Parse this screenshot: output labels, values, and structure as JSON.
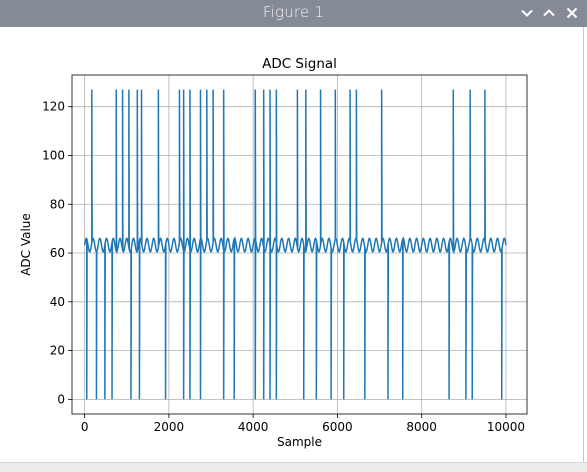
{
  "window": {
    "title": "Figure 1",
    "controls": [
      {
        "name": "minimize",
        "icon": "chevron-down-icon"
      },
      {
        "name": "maximize",
        "icon": "chevron-up-icon"
      },
      {
        "name": "close",
        "icon": "close-icon"
      }
    ],
    "titlebar_color": "#848b96"
  },
  "chart_data": {
    "type": "line",
    "title": "ADC Signal",
    "xlabel": "Sample",
    "ylabel": "ADC Value",
    "xlim": [
      -300,
      10500
    ],
    "ylim": [
      -6,
      133
    ],
    "xticks": [
      0,
      2000,
      4000,
      6000,
      8000,
      10000
    ],
    "yticks": [
      0,
      20,
      40,
      60,
      80,
      100,
      120
    ],
    "grid": true,
    "line_color": "#1f77b4",
    "series": [
      {
        "baseline": {
          "x_start": 0,
          "x_end": 10000,
          "min": 60.5,
          "max": 66,
          "period": 160
        },
        "spikes_to_127_at_x": [
          170,
          750,
          900,
          1050,
          1250,
          1350,
          1750,
          2250,
          2350,
          2500,
          2750,
          2900,
          3050,
          3300,
          4050,
          4250,
          4400,
          4550,
          5050,
          5250,
          5600,
          5950,
          6300,
          6450,
          7050,
          8750,
          9150,
          9500
        ],
        "drops_to_0_at_x": [
          50,
          280,
          480,
          650,
          1100,
          1300,
          1920,
          2350,
          2500,
          2750,
          3300,
          3550,
          4050,
          4250,
          4400,
          4550,
          5200,
          5500,
          5850,
          6150,
          6650,
          7200,
          7550,
          8650,
          9050,
          9200,
          9900
        ]
      }
    ]
  }
}
